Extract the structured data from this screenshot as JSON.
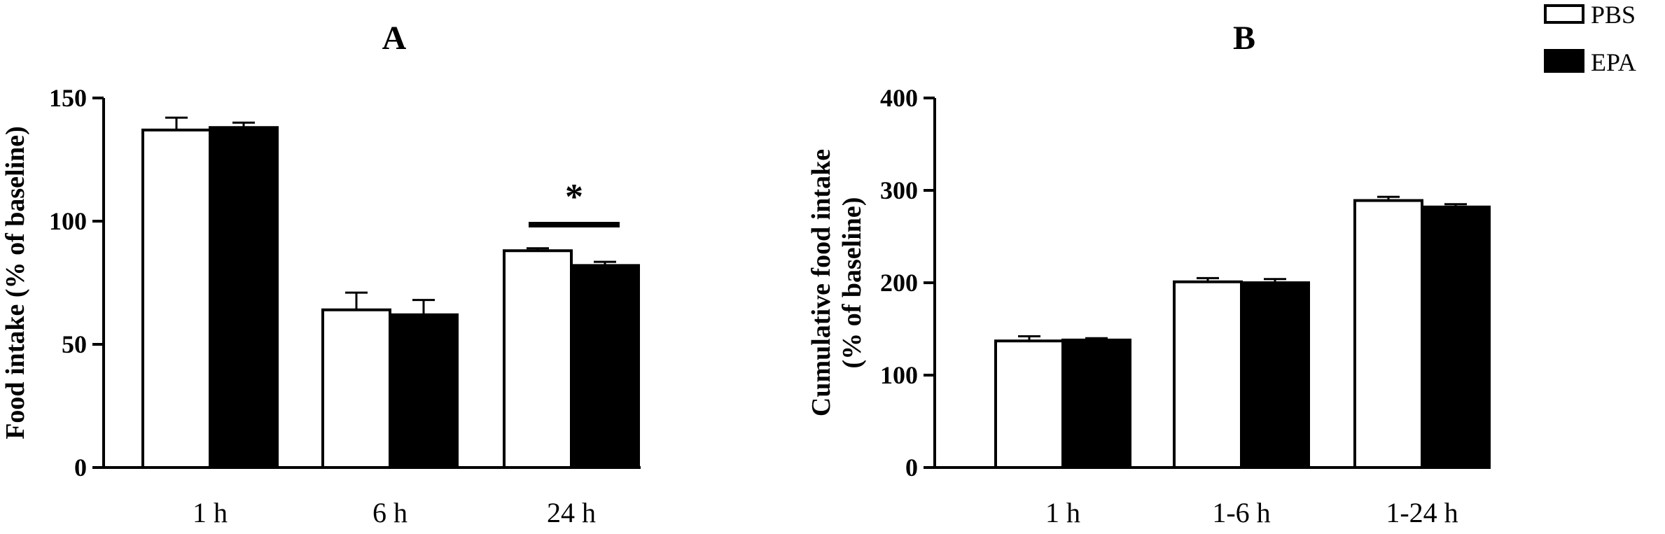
{
  "legend": [
    {
      "label": "PBS",
      "fill": "#ffffff"
    },
    {
      "label": "EPA",
      "fill": "#000000"
    }
  ],
  "chart_data": [
    {
      "type": "bar",
      "panel": "A",
      "ylabel": "Food intake (% of baseline)",
      "ylim": [
        0,
        150
      ],
      "yticks": [
        0,
        50,
        100,
        150
      ],
      "categories": [
        "1 h",
        "6 h",
        "24 h"
      ],
      "series": [
        {
          "name": "PBS",
          "color": "#ffffff",
          "values": [
            137,
            64,
            88
          ],
          "errors": [
            5,
            7,
            1
          ]
        },
        {
          "name": "EPA",
          "color": "#000000",
          "values": [
            138,
            62,
            82
          ],
          "errors": [
            2,
            6,
            1.5
          ]
        }
      ],
      "annotations": [
        {
          "text": "*",
          "category": "24 h"
        }
      ],
      "grid": false
    },
    {
      "type": "bar",
      "panel": "B",
      "ylabel": [
        "Cumulative food intake",
        "(% of baseline)"
      ],
      "ylim": [
        0,
        400
      ],
      "yticks": [
        0,
        100,
        200,
        300,
        400
      ],
      "categories": [
        "1 h",
        "1-6 h",
        "1-24 h"
      ],
      "series": [
        {
          "name": "PBS",
          "color": "#ffffff",
          "values": [
            137,
            201,
            289
          ],
          "errors": [
            5,
            4,
            4
          ]
        },
        {
          "name": "EPA",
          "color": "#000000",
          "values": [
            138,
            200,
            282
          ],
          "errors": [
            2,
            4,
            3
          ]
        }
      ],
      "annotations": [],
      "grid": false
    }
  ]
}
